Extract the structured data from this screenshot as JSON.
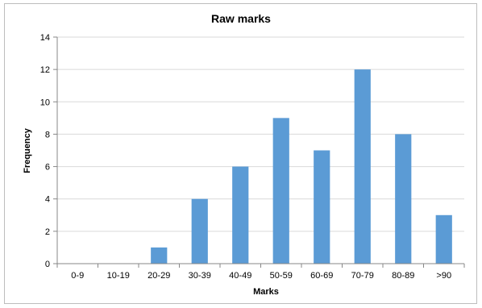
{
  "chart_data": {
    "type": "bar",
    "title": "Raw marks",
    "xlabel": "Marks",
    "ylabel": "Frequency",
    "categories": [
      "0-9",
      "10-19",
      "20-29",
      "30-39",
      "40-49",
      "50-59",
      "60-69",
      "70-79",
      "80-89",
      ">90"
    ],
    "values": [
      0,
      0,
      1,
      4,
      6,
      9,
      7,
      12,
      8,
      3
    ],
    "ylim": [
      0,
      14
    ],
    "yticks": [
      0,
      2,
      4,
      6,
      8,
      10,
      12,
      14
    ],
    "grid": true,
    "legend": "none",
    "bar_color": "#5b9bd5"
  }
}
